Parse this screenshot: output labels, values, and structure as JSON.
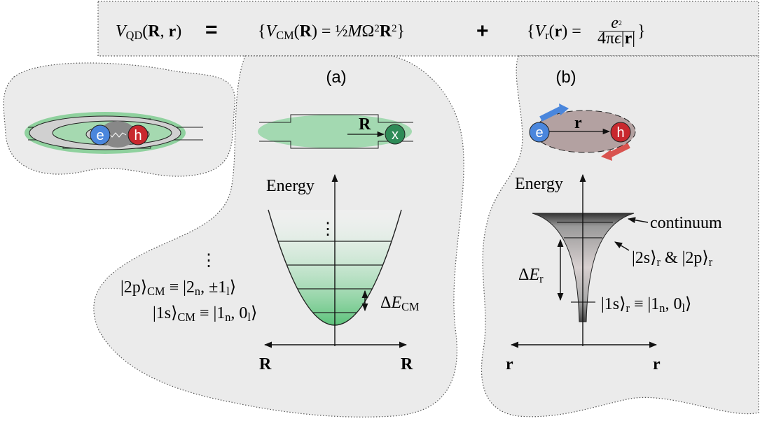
{
  "equation": {
    "lhs": [
      {
        "it": "V"
      },
      {
        "sub": "QD"
      },
      {
        "text": "("
      },
      {
        "bold": "R"
      },
      {
        "text": ", "
      },
      {
        "bold": "r"
      },
      {
        "text": ")"
      }
    ],
    "equals": "=",
    "cm": [
      {
        "text": "{"
      },
      {
        "it": "V"
      },
      {
        "sub": "CM"
      },
      {
        "text": "("
      },
      {
        "bold": "R"
      },
      {
        "text": ") = ½"
      },
      {
        "it": "M"
      },
      {
        "text": "Ω"
      },
      {
        "sup": "2"
      },
      {
        "bold": "R"
      },
      {
        "sup": "2"
      },
      {
        "text": "}"
      }
    ],
    "plus": "+",
    "rel": [
      {
        "text": "{"
      },
      {
        "it": "V"
      },
      {
        "sub": "r"
      },
      {
        "text": "("
      },
      {
        "bold": "r"
      },
      {
        "text": ") = "
      }
    ],
    "frac_num": [
      {
        "it": "e"
      },
      {
        "sup": "2"
      }
    ],
    "frac_den": [
      {
        "text": "4π"
      },
      {
        "it": "ϵ"
      },
      {
        "text": "|"
      },
      {
        "bold": "r"
      },
      {
        "text": "|"
      }
    ],
    "rel_close": "}"
  },
  "cartoon": {
    "electron": "e",
    "hole": "h"
  },
  "panel_a": {
    "label": "(a)",
    "exciton": "x",
    "position": [
      {
        "bold": "R"
      }
    ],
    "axis_y": "Energy",
    "dots_well": "⋮",
    "dots_states": "⋮",
    "state_2p": [
      {
        "text": "|2p⟩"
      },
      {
        "sub": "CM"
      },
      {
        "text": " ≡ |2"
      },
      {
        "sub": "n"
      },
      {
        "text": ", ±1"
      },
      {
        "sub": "l"
      },
      {
        "text": "⟩"
      }
    ],
    "state_1s": [
      {
        "text": "|1s⟩"
      },
      {
        "sub": "CM"
      },
      {
        "text": " ≡ |1"
      },
      {
        "sub": "n"
      },
      {
        "text": ", 0"
      },
      {
        "sub": "l"
      },
      {
        "text": "⟩"
      }
    ],
    "gap": [
      {
        "text": "Δ"
      },
      {
        "it": "E"
      },
      {
        "sub": "CM"
      }
    ],
    "axis_x_left": [
      {
        "bold": "R"
      }
    ],
    "axis_x_right": [
      {
        "bold": "R"
      }
    ]
  },
  "panel_b": {
    "label": "(b)",
    "electron": "e",
    "hole": "h",
    "separation": [
      {
        "bold": "r"
      }
    ],
    "axis_y": "Energy",
    "continuum": "continuum",
    "state_2": [
      {
        "text": "|2s⟩"
      },
      {
        "sub": "r"
      },
      {
        "text": " & |2p⟩"
      },
      {
        "sub": "r"
      }
    ],
    "gap": [
      {
        "text": "Δ"
      },
      {
        "it": "E"
      },
      {
        "sub": "r"
      }
    ],
    "state_1s": [
      {
        "text": "|1s⟩"
      },
      {
        "sub": "r"
      },
      {
        "text": " ≡ |1"
      },
      {
        "sub": "n"
      },
      {
        "text": ", 0"
      },
      {
        "sub": "l"
      },
      {
        "text": "⟩"
      }
    ],
    "axis_x_left": [
      {
        "bold": "r"
      }
    ],
    "axis_x_right": [
      {
        "bold": "r"
      }
    ]
  }
}
